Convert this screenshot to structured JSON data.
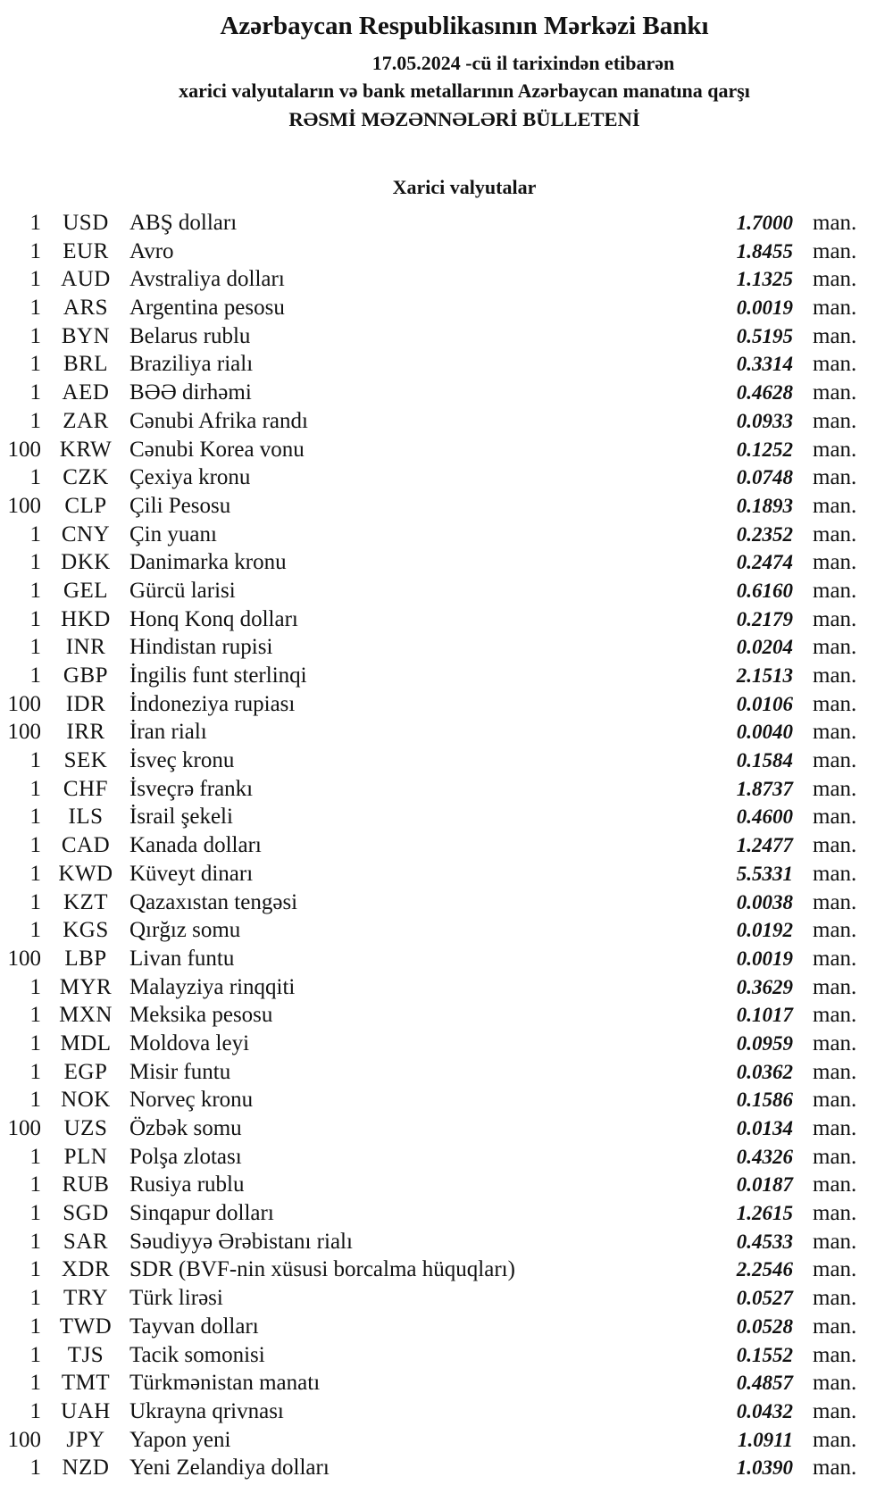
{
  "page": {
    "title": "Azərbaycan Respublikasının Mərkəzi Bankı",
    "date_line": "17.05.2024 -cü il tarixindən etibarən",
    "subtitle_line1": "xarici valyutaların və bank metallarının Azərbaycan manatına qarşı",
    "subtitle_line2": "RƏSMİ MƏZƏNNƏLƏRİ BÜLLETENİ",
    "section_header": "Xarici valyutalar",
    "unit_label": "man."
  },
  "rates": [
    {
      "qty": "1",
      "code": "USD",
      "name": "ABŞ dolları",
      "rate": "1.7000"
    },
    {
      "qty": "1",
      "code": "EUR",
      "name": "Avro",
      "rate": "1.8455"
    },
    {
      "qty": "1",
      "code": "AUD",
      "name": "Avstraliya dolları",
      "rate": "1.1325"
    },
    {
      "qty": "1",
      "code": "ARS",
      "name": "Argentina pesosu",
      "rate": "0.0019"
    },
    {
      "qty": "1",
      "code": "BYN",
      "name": "Belarus rublu",
      "rate": "0.5195"
    },
    {
      "qty": "1",
      "code": "BRL",
      "name": "Braziliya rialı",
      "rate": "0.3314"
    },
    {
      "qty": "1",
      "code": "AED",
      "name": "BƏƏ dirhəmi",
      "rate": "0.4628"
    },
    {
      "qty": "1",
      "code": "ZAR",
      "name": "Cənubi Afrika randı",
      "rate": "0.0933"
    },
    {
      "qty": "100",
      "code": "KRW",
      "name": "Cənubi Korea vonu",
      "rate": "0.1252"
    },
    {
      "qty": "1",
      "code": "CZK",
      "name": "Çexiya kronu",
      "rate": "0.0748"
    },
    {
      "qty": "100",
      "code": "CLP",
      "name": "Çili Pesosu",
      "rate": "0.1893"
    },
    {
      "qty": "1",
      "code": "CNY",
      "name": "Çin yuanı",
      "rate": "0.2352"
    },
    {
      "qty": "1",
      "code": "DKK",
      "name": "Danimarka kronu",
      "rate": "0.2474"
    },
    {
      "qty": "1",
      "code": "GEL",
      "name": "Gürcü larisi",
      "rate": "0.6160"
    },
    {
      "qty": "1",
      "code": "HKD",
      "name": "Honq Konq dolları",
      "rate": "0.2179"
    },
    {
      "qty": "1",
      "code": "INR",
      "name": "Hindistan rupisi",
      "rate": "0.0204"
    },
    {
      "qty": "1",
      "code": "GBP",
      "name": "İngilis funt sterlinqi",
      "rate": "2.1513"
    },
    {
      "qty": "100",
      "code": "IDR",
      "name": "İndoneziya rupiası",
      "rate": "0.0106"
    },
    {
      "qty": "100",
      "code": "IRR",
      "name": "İran rialı",
      "rate": "0.0040"
    },
    {
      "qty": "1",
      "code": "SEK",
      "name": "İsveç kronu",
      "rate": "0.1584"
    },
    {
      "qty": "1",
      "code": "CHF",
      "name": "İsveçrə frankı",
      "rate": "1.8737"
    },
    {
      "qty": "1",
      "code": "ILS",
      "name": "İsrail şekeli",
      "rate": "0.4600"
    },
    {
      "qty": "1",
      "code": "CAD",
      "name": "Kanada dolları",
      "rate": "1.2477"
    },
    {
      "qty": "1",
      "code": "KWD",
      "name": "Küveyt dinarı",
      "rate": "5.5331"
    },
    {
      "qty": "1",
      "code": "KZT",
      "name": "Qazaxıstan tengəsi",
      "rate": "0.0038"
    },
    {
      "qty": "1",
      "code": "KGS",
      "name": "Qırğız somu",
      "rate": "0.0192"
    },
    {
      "qty": "100",
      "code": "LBP",
      "name": "Livan funtu",
      "rate": "0.0019"
    },
    {
      "qty": "1",
      "code": "MYR",
      "name": "Malayziya rinqqiti",
      "rate": "0.3629"
    },
    {
      "qty": "1",
      "code": "MXN",
      "name": "Meksika pesosu",
      "rate": "0.1017"
    },
    {
      "qty": "1",
      "code": "MDL",
      "name": "Moldova leyi",
      "rate": "0.0959"
    },
    {
      "qty": "1",
      "code": "EGP",
      "name": "Misir funtu",
      "rate": "0.0362"
    },
    {
      "qty": "1",
      "code": "NOK",
      "name": "Norveç kronu",
      "rate": "0.1586"
    },
    {
      "qty": "100",
      "code": "UZS",
      "name": "Özbək somu",
      "rate": "0.0134"
    },
    {
      "qty": "1",
      "code": "PLN",
      "name": "Polşa zlotası",
      "rate": "0.4326"
    },
    {
      "qty": "1",
      "code": "RUB",
      "name": "Rusiya rublu",
      "rate": "0.0187"
    },
    {
      "qty": "1",
      "code": "SGD",
      "name": "Sinqapur dolları",
      "rate": "1.2615"
    },
    {
      "qty": "1",
      "code": "SAR",
      "name": "Səudiyyə Ərəbistanı rialı",
      "rate": "0.4533"
    },
    {
      "qty": "1",
      "code": "XDR",
      "name": "SDR (BVF-nin xüsusi borcalma hüquqları)",
      "rate": "2.2546"
    },
    {
      "qty": "1",
      "code": "TRY",
      "name": "Türk lirəsi",
      "rate": "0.0527"
    },
    {
      "qty": "1",
      "code": "TWD",
      "name": "Tayvan dolları",
      "rate": "0.0528"
    },
    {
      "qty": "1",
      "code": "TJS",
      "name": "Tacik somonisi",
      "rate": "0.1552"
    },
    {
      "qty": "1",
      "code": "TMT",
      "name": "Türkmənistan manatı",
      "rate": "0.4857"
    },
    {
      "qty": "1",
      "code": "UAH",
      "name": "Ukrayna qrivnası",
      "rate": "0.0432"
    },
    {
      "qty": "100",
      "code": "JPY",
      "name": "Yapon yeni",
      "rate": "1.0911"
    },
    {
      "qty": "1",
      "code": "NZD",
      "name": "Yeni Zelandiya dolları",
      "rate": "1.0390"
    }
  ]
}
